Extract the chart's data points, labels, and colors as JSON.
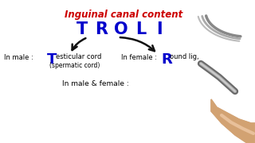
{
  "bg_color": "#ffffff",
  "title": "Inguinal canal content",
  "title_color": "#cc0000",
  "title_fontsize": 8.5,
  "mnemonic_letters": [
    "T",
    "R",
    "O",
    "L",
    "I"
  ],
  "mnemonic_color": "#0000cc",
  "mnemonic_fontsize": 15,
  "left_label": "In male : ",
  "left_T": "T",
  "left_text1": "esticular cord",
  "left_text2": "(spermatic cord)",
  "right_label": "In female : ",
  "right_R": "R",
  "right_text": "ound lig,",
  "bottom_text": "In male & female :",
  "text_color": "#000000",
  "blue_color": "#0000cc",
  "arrow_color": "#111111",
  "small_fontsize": 6.0,
  "big_letter_fontsize": 13
}
